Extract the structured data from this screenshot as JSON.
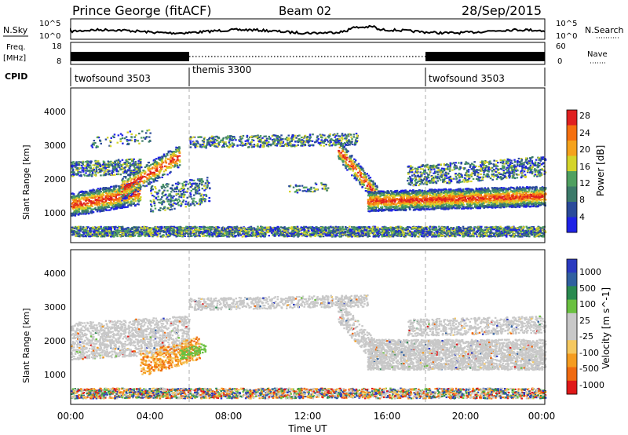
{
  "header": {
    "station": "Prince George (fitACF)",
    "beam": "Beam 02",
    "date": "28/Sep/2015"
  },
  "noise_panel": {
    "left_label": "N.Sky",
    "left_ticks": [
      "10^5",
      "10^0"
    ],
    "right_ticks": [
      "10^5",
      "10^0"
    ],
    "right_label": "N.Search"
  },
  "freq_panel": {
    "left_label_top": "Freq.",
    "left_label_unit": "[MHz]",
    "left_ticks": [
      "18",
      "8"
    ],
    "right_ticks": [
      "60",
      "0"
    ],
    "right_label": "Nave"
  },
  "cpid": {
    "label": "CPID",
    "segments": [
      {
        "name": "twofsound 3503",
        "start_h": 0,
        "end_h": 6
      },
      {
        "name": "themis 3300",
        "start_h": 6,
        "end_h": 18
      },
      {
        "name": "twofsound 3503",
        "start_h": 18,
        "end_h": 24
      }
    ]
  },
  "axes": {
    "x_ticks": [
      "00:00",
      "04:00",
      "08:00",
      "12:00",
      "16:00",
      "20:00",
      "00:00"
    ],
    "x_label": "Time UT",
    "y_label": "Slant Range [km]",
    "y_ticks": [
      "1000",
      "2000",
      "3000",
      "4000"
    ]
  },
  "colors": {
    "power_scale": [
      "#1e22e6",
      "#2a4a9a",
      "#3c7a6a",
      "#4fa060",
      "#d4d42a",
      "#f5a21c",
      "#f57010",
      "#e02020"
    ],
    "velocity_scale": [
      "#e01818",
      "#f06a10",
      "#f59c20",
      "#f5c860",
      "#c8c8c8",
      "#c8c8c8",
      "#6ac040",
      "#2a8a50",
      "#3060a0",
      "#2a3ac0"
    ],
    "ground_scatter": "#c8c8c8"
  },
  "chart_data": [
    {
      "type": "heatmap",
      "title": "Power",
      "x": "time UT (hours)",
      "xlim": [
        0,
        24
      ],
      "ylim": [
        0,
        4600
      ],
      "colorbar": {
        "label": "Power [dB]",
        "ticks": [
          "4",
          "8",
          "12",
          "16",
          "20",
          "24",
          "28"
        ],
        "range": [
          0,
          32
        ]
      },
      "regions": [
        {
          "t": [
            0,
            6.5
          ],
          "range_center_km": [
            1250,
            1400,
            1900,
            2300,
            2200
          ],
          "level": "high"
        },
        {
          "t": [
            4,
            7
          ],
          "range_center_km": [
            1300,
            1600
          ],
          "level": "medium"
        },
        {
          "t": [
            6,
            14.5
          ],
          "range_center_km": [
            3000,
            3200,
            2900
          ],
          "level": "low"
        },
        {
          "t": [
            14,
            24
          ],
          "range_center_km": [
            2000,
            1300,
            1250,
            1350,
            1500
          ],
          "level": "high"
        }
      ]
    },
    {
      "type": "heatmap",
      "title": "Velocity",
      "x": "time UT (hours)",
      "xlim": [
        0,
        24
      ],
      "ylim": [
        0,
        4600
      ],
      "colorbar": {
        "label": "Velocity [m s^-1]",
        "ticks": [
          "1000",
          "500",
          "100",
          "25",
          "-25",
          "-100",
          "-500",
          "-1000"
        ],
        "range": [
          -1000,
          1000
        ]
      },
      "regions": [
        {
          "t": [
            0,
            6
          ],
          "range_center_km": [
            1900,
            2000,
            2100
          ],
          "velocity": "ground scatter"
        },
        {
          "t": [
            3.5,
            6.5
          ],
          "range_center_km": [
            1200,
            1700
          ],
          "velocity": "-100 to -500"
        },
        {
          "t": [
            6,
            15
          ],
          "range_center_km": [
            3000,
            3200,
            2900
          ],
          "velocity": "ground scatter"
        },
        {
          "t": [
            15,
            24
          ],
          "range_center_km": [
            1800,
            1500,
            1400
          ],
          "velocity": "ground scatter"
        }
      ]
    }
  ]
}
